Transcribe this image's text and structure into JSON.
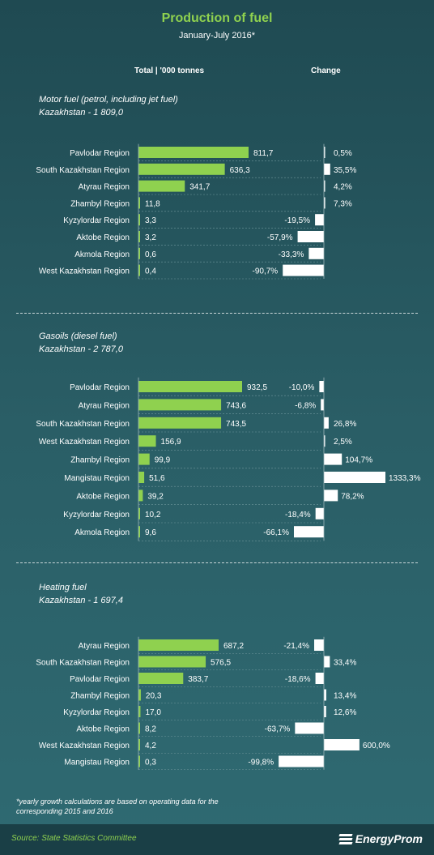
{
  "title": "Production of fuel",
  "subtitle": "January-July 2016*",
  "header": {
    "total": "Total  |  '000 tonnes",
    "change": "Change"
  },
  "footnote": "*yearly growth calculations are based on operating data for the corresponding 2015 and 2016",
  "source": "Source:  State Statistics Committee",
  "brand": "EnergyProm",
  "colors": {
    "bar": "#8fd14f",
    "change": "#ffffff",
    "title": "#8fd14f"
  },
  "chart_data": [
    {
      "type": "bar",
      "title": "Motor fuel (petrol,  including jet fuel)",
      "subtitle": "Kazakhstan - 1 809,0",
      "categories": [
        "Pavlodar Region",
        "South Kazakhstan Region",
        "Atyrau Region",
        "Zhambyl Region",
        "Kyzylordar Region",
        "Aktobe Region",
        "Akmola Region",
        "West Kazakhstan Region"
      ],
      "values": [
        811.7,
        636.3,
        341.7,
        11.8,
        3.3,
        3.2,
        0.6,
        0.4
      ],
      "value_labels": [
        "811,7",
        "636,3",
        "341,7",
        "11,8",
        "3,3",
        "3,2",
        "0,6",
        "0,4"
      ],
      "change": [
        0.5,
        35.5,
        4.2,
        7.3,
        -19.5,
        -57.9,
        -33.3,
        -90.7
      ],
      "change_labels": [
        "0,5%",
        "35,5%",
        "4,2%",
        "7,3%",
        "-19,5%",
        "-57,9%",
        "-33,3%",
        "-90,7%"
      ]
    },
    {
      "type": "bar",
      "title": "Gasoils (diesel fuel)",
      "subtitle": "Kazakhstan - 2 787,0",
      "categories": [
        "Pavlodar Region",
        "Atyrau Region",
        "South Kazakhstan Region",
        "West Kazakhstan Region",
        "Zhambyl Region",
        "Mangistau Region",
        "Aktobe Region",
        "Kyzylordar Region",
        "Akmola Region"
      ],
      "values": [
        932.5,
        743.6,
        743.5,
        156.9,
        99.9,
        51.6,
        39.2,
        10.2,
        9.6
      ],
      "value_labels": [
        "932,5",
        "743,6",
        "743,5",
        "156,9",
        "99,9",
        "51,6",
        "39,2",
        "10,2",
        "9,6"
      ],
      "change": [
        -10.0,
        -6.8,
        26.8,
        2.5,
        104.7,
        1333.3,
        78.2,
        -18.4,
        -66.1
      ],
      "change_labels": [
        "-10,0%",
        "-6,8%",
        "26,8%",
        "2,5%",
        "104,7%",
        "1333,3%",
        "78,2%",
        "-18,4%",
        "-66,1%"
      ]
    },
    {
      "type": "bar",
      "title": "Heating fuel",
      "subtitle": "Kazakhstan - 1 697,4",
      "categories": [
        "Atyrau Region",
        "South Kazakhstan Region",
        "Pavlodar Region",
        "Zhambyl Region",
        "Kyzylordar Region",
        "Aktobe Region",
        "West Kazakhstan Region",
        "Mangistau Region"
      ],
      "values": [
        687.2,
        576.5,
        383.7,
        20.3,
        17.0,
        8.2,
        4.2,
        0.3
      ],
      "value_labels": [
        "687,2",
        "576,5",
        "383,7",
        "20,3",
        "17,0",
        "8,2",
        "4,2",
        "0,3"
      ],
      "change": [
        -21.4,
        33.4,
        -18.6,
        13.4,
        12.6,
        -63.7,
        600.0,
        -99.8
      ],
      "change_labels": [
        "-21,4%",
        "33,4%",
        "-18,6%",
        "13,4%",
        "12,6%",
        "-63,7%",
        "600,0%",
        "-99,8%"
      ]
    }
  ]
}
